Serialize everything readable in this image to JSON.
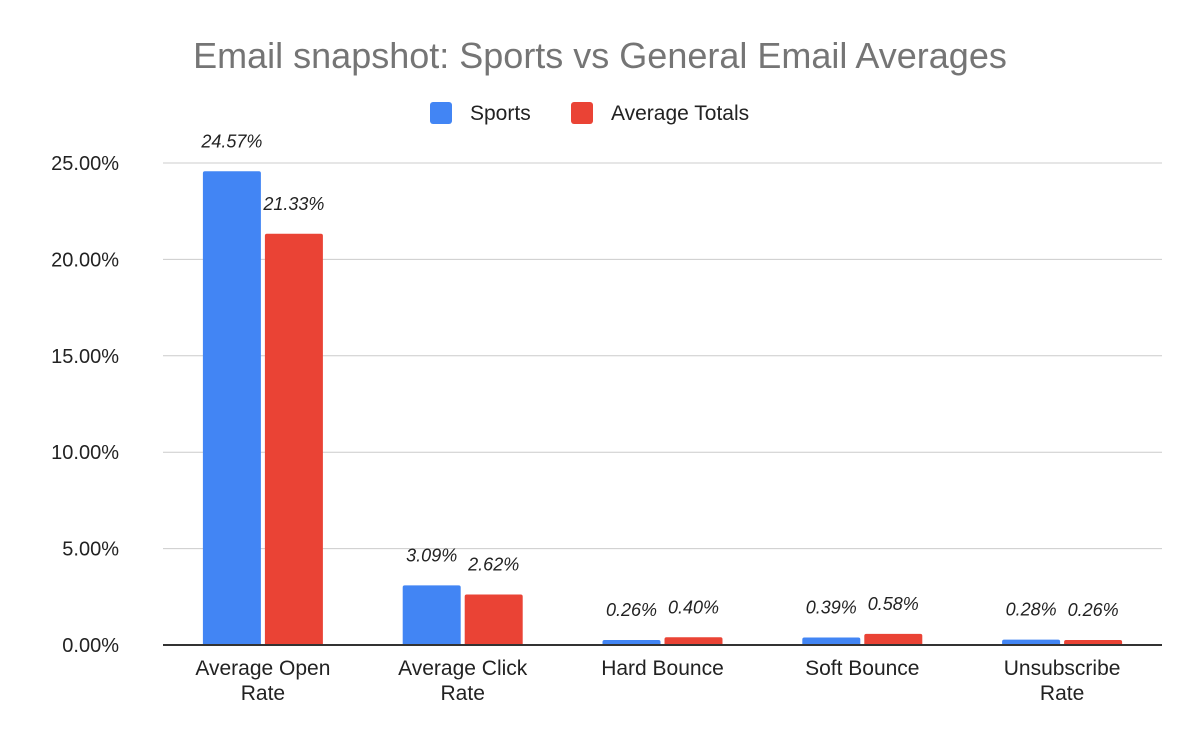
{
  "chart_data": {
    "type": "bar",
    "title": "Email snapshot: Sports vs General Email Averages",
    "categories": [
      [
        "Average Open",
        "Rate"
      ],
      [
        "Average Click",
        "Rate"
      ],
      [
        "Hard Bounce"
      ],
      [
        "Soft Bounce"
      ],
      [
        "Unsubscribe",
        "Rate"
      ]
    ],
    "series": [
      {
        "name": "Sports",
        "color": "#4285F4",
        "values": [
          24.57,
          3.09,
          0.26,
          0.39,
          0.28
        ],
        "labels": [
          "24.57%",
          "3.09%",
          "0.26%",
          "0.39%",
          "0.28%"
        ]
      },
      {
        "name": "Average Totals",
        "color": "#EA4335",
        "values": [
          21.33,
          2.62,
          0.4,
          0.58,
          0.26
        ],
        "labels": [
          "21.33%",
          "2.62%",
          "0.40%",
          "0.58%",
          "0.26%"
        ]
      }
    ],
    "ylim": [
      0,
      25
    ],
    "yticks": [
      "0.00%",
      "5.00%",
      "10.00%",
      "15.00%",
      "20.00%",
      "25.00%"
    ],
    "ytick_values": [
      0,
      5,
      10,
      15,
      20,
      25
    ],
    "grid": true,
    "legend": "top"
  }
}
